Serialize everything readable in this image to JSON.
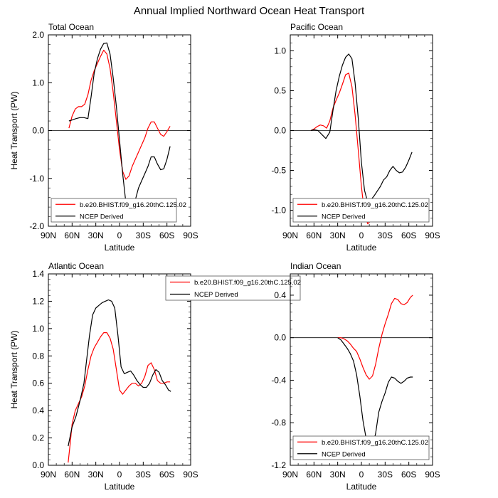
{
  "figure_title": "Annual Implied Northward Ocean Heat Transport",
  "colors": {
    "model": "#ff0000",
    "obs": "#000000",
    "zero_line": "#000000",
    "frame": "#000000",
    "legend_border": "#555555"
  },
  "chart_data": [
    {
      "type": "line",
      "title": "Total Ocean",
      "xlabel": "Latitude",
      "ylabel": "Heat Transport (PW)",
      "xlim": [
        90,
        -90
      ],
      "ylim": [
        -2.0,
        2.0
      ],
      "xticks": [
        90,
        60,
        30,
        0,
        -30,
        -60,
        -90
      ],
      "xtick_labels": [
        "90N",
        "60N",
        "30N",
        "0",
        "30S",
        "60S",
        "90S"
      ],
      "yticks": [
        -2.0,
        -1.0,
        0.0,
        1.0,
        2.0
      ],
      "ytick_labels": [
        "-2.0",
        "-1.0",
        "0.0",
        "1.0",
        "2.0"
      ],
      "zero_line": true,
      "legend_position": "bottom-left",
      "series": [
        {
          "name": "b.e20.BHIST.f09_g16.20thC.125.02",
          "color": "#ff0000",
          "x": [
            64,
            60,
            56,
            52,
            48,
            44,
            40,
            36,
            32,
            28,
            24,
            20,
            16,
            12,
            8,
            4,
            0,
            -4,
            -8,
            -12,
            -16,
            -20,
            -24,
            -28,
            -32,
            -36,
            -40,
            -44,
            -48,
            -52,
            -56,
            -60,
            -64
          ],
          "y": [
            0.05,
            0.3,
            0.45,
            0.5,
            0.5,
            0.55,
            0.75,
            1.05,
            1.25,
            1.4,
            1.55,
            1.68,
            1.6,
            1.3,
            0.8,
            0.2,
            -0.4,
            -0.85,
            -1.02,
            -0.95,
            -0.75,
            -0.6,
            -0.45,
            -0.3,
            -0.15,
            0.05,
            0.18,
            0.18,
            0.05,
            -0.08,
            -0.12,
            -0.02,
            0.09
          ]
        },
        {
          "name": "NCEP Derived",
          "color": "#000000",
          "x": [
            64,
            60,
            55,
            50,
            45,
            40,
            36,
            32,
            28,
            24,
            20,
            16,
            12,
            8,
            4,
            0,
            -4,
            -8,
            -12,
            -16,
            -20,
            -24,
            -28,
            -32,
            -36,
            -40,
            -44,
            -48,
            -52,
            -56,
            -60,
            -64
          ],
          "y": [
            0.2,
            0.22,
            0.25,
            0.27,
            0.27,
            0.25,
            0.7,
            1.2,
            1.5,
            1.7,
            1.82,
            1.83,
            1.6,
            1.1,
            0.5,
            -0.2,
            -0.9,
            -1.5,
            -1.65,
            -1.62,
            -1.45,
            -1.2,
            -1.05,
            -0.9,
            -0.75,
            -0.55,
            -0.55,
            -0.7,
            -0.82,
            -0.8,
            -0.6,
            -0.33
          ]
        }
      ],
      "legend": [
        "b.e20.BHIST.f09_g16.20thC.125.02",
        "NCEP Derived"
      ]
    },
    {
      "type": "line",
      "title": "Pacific Ocean",
      "xlabel": "Latitude",
      "ylabel": "",
      "xlim": [
        90,
        -90
      ],
      "ylim": [
        -1.2,
        1.2
      ],
      "xticks": [
        90,
        60,
        30,
        0,
        -30,
        -60,
        -90
      ],
      "xtick_labels": [
        "90N",
        "60N",
        "30N",
        "0",
        "30S",
        "60S",
        "90S"
      ],
      "yticks": [
        -1.0,
        -0.5,
        0.0,
        0.5,
        1.0
      ],
      "ytick_labels": [
        "-1.0",
        "-0.5",
        "0.0",
        "0.5",
        "1.0"
      ],
      "zero_line": true,
      "legend_position": "bottom-left",
      "series": [
        {
          "name": "b.e20.BHIST.f09_g16.20thC.125.02",
          "color": "#ff0000",
          "x": [
            64,
            60,
            56,
            52,
            48,
            44,
            40,
            36,
            32,
            28,
            24,
            20,
            16,
            12,
            8,
            4,
            0,
            -4,
            -8,
            -12,
            -16,
            -20,
            -24,
            -28,
            -32,
            -36,
            -40,
            -44,
            -48,
            -52,
            -56,
            -60,
            -64
          ],
          "y": [
            0.0,
            0.02,
            0.05,
            0.07,
            0.06,
            0.03,
            0.12,
            0.28,
            0.38,
            0.47,
            0.58,
            0.7,
            0.72,
            0.55,
            0.2,
            -0.25,
            -0.7,
            -1.05,
            -1.17,
            -1.13,
            -1.08,
            -1.0,
            -0.93,
            -0.92,
            -0.93,
            -0.92,
            -0.9,
            -0.92,
            -0.97,
            -1.02,
            -1.04,
            -1.0,
            -0.91
          ]
        },
        {
          "name": "NCEP Derived",
          "color": "#000000",
          "x": [
            64,
            60,
            55,
            50,
            45,
            40,
            36,
            32,
            28,
            24,
            20,
            16,
            12,
            8,
            4,
            0,
            -4,
            -8,
            -12,
            -16,
            -20,
            -24,
            -28,
            -32,
            -36,
            -40,
            -44,
            -48,
            -52,
            -56,
            -60,
            -64
          ],
          "y": [
            0.0,
            0.01,
            0.0,
            -0.05,
            -0.1,
            -0.02,
            0.25,
            0.5,
            0.68,
            0.82,
            0.92,
            0.96,
            0.9,
            0.6,
            0.15,
            -0.4,
            -0.75,
            -0.9,
            -0.87,
            -0.82,
            -0.76,
            -0.7,
            -0.62,
            -0.58,
            -0.5,
            -0.45,
            -0.5,
            -0.53,
            -0.52,
            -0.46,
            -0.37,
            -0.27
          ]
        }
      ],
      "legend": [
        "b.e20.BHIST.f09_g16.20thC.125.02",
        "NCEP Derived"
      ]
    },
    {
      "type": "line",
      "title": "Atlantic Ocean",
      "xlabel": "Latitude",
      "ylabel": "Heat Transport (PW)",
      "xlim": [
        90,
        -90
      ],
      "ylim": [
        0.0,
        1.4
      ],
      "xticks": [
        90,
        60,
        30,
        0,
        -30,
        -60,
        -90
      ],
      "xtick_labels": [
        "90N",
        "60N",
        "30N",
        "0",
        "30S",
        "60S",
        "90S"
      ],
      "yticks": [
        0.0,
        0.2,
        0.4,
        0.6,
        0.8,
        1.0,
        1.2,
        1.4
      ],
      "ytick_labels": [
        "0.0",
        "0.2",
        "0.4",
        "0.6",
        "0.8",
        "1.0",
        "1.2",
        "1.4"
      ],
      "zero_line": false,
      "legend_position": "top-right",
      "series": [
        {
          "name": "b.e20.BHIST.f09_g16.20thC.125.02",
          "color": "#ff0000",
          "x": [
            65,
            62,
            60,
            56,
            52,
            48,
            44,
            40,
            36,
            32,
            28,
            24,
            20,
            16,
            12,
            8,
            4,
            0,
            -4,
            -8,
            -12,
            -16,
            -20,
            -24,
            -28,
            -32,
            -36,
            -40,
            -44,
            -48,
            -52,
            -56,
            -60,
            -64
          ],
          "y": [
            0.02,
            0.18,
            0.3,
            0.4,
            0.45,
            0.5,
            0.58,
            0.7,
            0.8,
            0.86,
            0.9,
            0.94,
            0.97,
            0.97,
            0.93,
            0.85,
            0.7,
            0.55,
            0.52,
            0.55,
            0.58,
            0.6,
            0.6,
            0.58,
            0.6,
            0.65,
            0.73,
            0.75,
            0.7,
            0.62,
            0.6,
            0.6,
            0.61,
            0.61
          ]
        },
        {
          "name": "NCEP Derived",
          "color": "#000000",
          "x": [
            65,
            60,
            55,
            50,
            45,
            42,
            38,
            34,
            30,
            26,
            22,
            18,
            14,
            10,
            6,
            2,
            -2,
            -6,
            -10,
            -14,
            -18,
            -22,
            -26,
            -30,
            -34,
            -38,
            -42,
            -46,
            -50,
            -54,
            -58,
            -62,
            -65
          ],
          "y": [
            0.14,
            0.28,
            0.36,
            0.47,
            0.6,
            0.75,
            0.95,
            1.1,
            1.15,
            1.17,
            1.19,
            1.2,
            1.21,
            1.2,
            1.15,
            0.95,
            0.72,
            0.67,
            0.68,
            0.69,
            0.66,
            0.62,
            0.59,
            0.57,
            0.57,
            0.6,
            0.66,
            0.7,
            0.68,
            0.62,
            0.59,
            0.55,
            0.54
          ]
        }
      ],
      "legend": [
        "b.e20.BHIST.f09_g16.20thC.125.02",
        "NCEP Derived"
      ]
    },
    {
      "type": "line",
      "title": "Indian Ocean",
      "xlabel": "Latitude",
      "ylabel": "",
      "xlim": [
        90,
        -90
      ],
      "ylim": [
        -1.2,
        0.6
      ],
      "xticks": [
        90,
        60,
        30,
        0,
        -30,
        -60,
        -90
      ],
      "xtick_labels": [
        "90N",
        "60N",
        "30N",
        "0",
        "30S",
        "60S",
        "90S"
      ],
      "yticks": [
        -1.2,
        -0.8,
        -0.4,
        0.0,
        0.4
      ],
      "ytick_labels": [
        "-1.2",
        "-0.8",
        "-0.4",
        "0.0",
        "0.4"
      ],
      "zero_line": true,
      "legend_position": "bottom-left",
      "series": [
        {
          "name": "b.e20.BHIST.f09_g16.20thC.125.02",
          "color": "#ff0000",
          "x": [
            30,
            26,
            22,
            18,
            14,
            10,
            6,
            2,
            -2,
            -6,
            -10,
            -14,
            -18,
            -22,
            -26,
            -30,
            -34,
            -38,
            -42,
            -46,
            -50,
            -54,
            -58,
            -62,
            -65
          ],
          "y": [
            0.0,
            0.0,
            -0.01,
            -0.03,
            -0.06,
            -0.1,
            -0.13,
            -0.2,
            -0.28,
            -0.35,
            -0.39,
            -0.36,
            -0.25,
            -0.1,
            0.03,
            0.13,
            0.22,
            0.32,
            0.37,
            0.36,
            0.32,
            0.31,
            0.33,
            0.38,
            0.4
          ]
        },
        {
          "name": "NCEP Derived",
          "color": "#000000",
          "x": [
            30,
            26,
            22,
            18,
            14,
            10,
            6,
            2,
            -2,
            -6,
            -10,
            -14,
            -18,
            -22,
            -26,
            -30,
            -34,
            -38,
            -42,
            -46,
            -50,
            -54,
            -58,
            -62,
            -65
          ],
          "y": [
            0.0,
            -0.02,
            -0.06,
            -0.1,
            -0.15,
            -0.22,
            -0.35,
            -0.55,
            -0.78,
            -0.95,
            -1.05,
            -1.02,
            -0.9,
            -0.7,
            -0.6,
            -0.52,
            -0.42,
            -0.37,
            -0.38,
            -0.41,
            -0.43,
            -0.41,
            -0.38,
            -0.37,
            -0.37
          ]
        }
      ],
      "legend": [
        "b.e20.BHIST.f09_g16.20thC.125.02",
        "NCEP Derived"
      ]
    }
  ]
}
